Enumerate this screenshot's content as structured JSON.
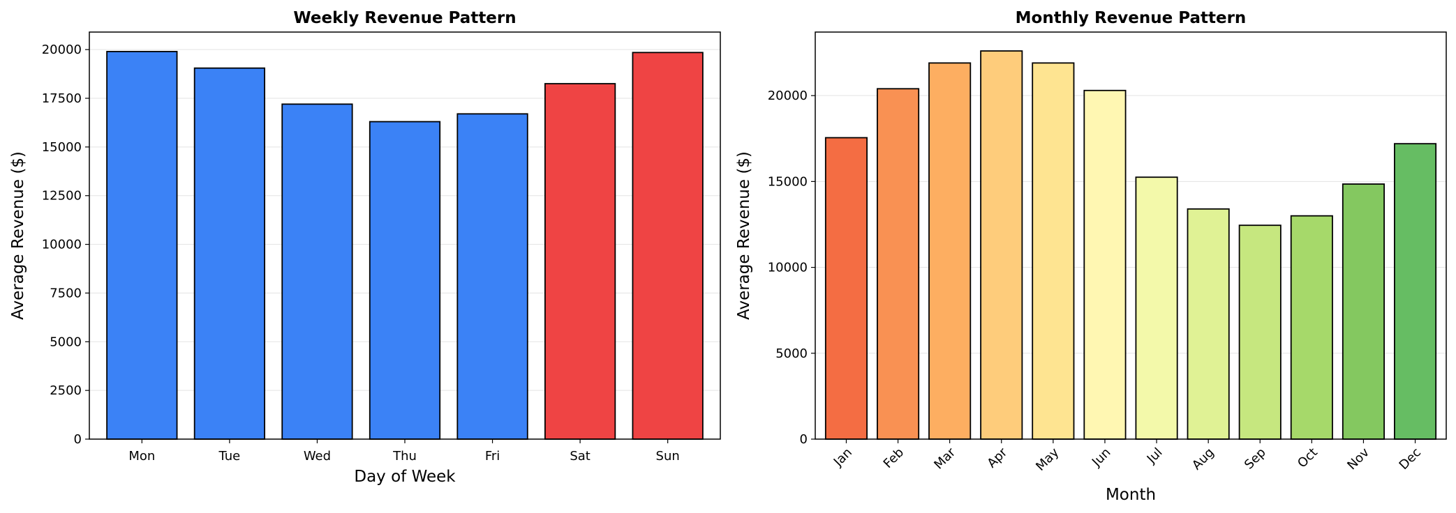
{
  "chart_data": [
    {
      "type": "bar",
      "title": "Weekly Revenue Pattern",
      "xlabel": "Day of Week",
      "ylabel": "Average Revenue ($)",
      "categories": [
        "Mon",
        "Tue",
        "Wed",
        "Thu",
        "Fri",
        "Sat",
        "Sun"
      ],
      "values": [
        19900,
        19050,
        17200,
        16300,
        16700,
        18250,
        19850
      ],
      "colors": [
        "#3b82f6",
        "#3b82f6",
        "#3b82f6",
        "#3b82f6",
        "#3b82f6",
        "#ef4444",
        "#ef4444"
      ],
      "ylim": [
        0,
        20900
      ],
      "yticks": [
        0,
        2500,
        5000,
        7500,
        10000,
        12500,
        15000,
        17500,
        20000
      ],
      "grid": "horizontal",
      "xtick_rotation": 0
    },
    {
      "type": "bar",
      "title": "Monthly Revenue Pattern",
      "xlabel": "Month",
      "ylabel": "Average Revenue ($)",
      "categories": [
        "Jan",
        "Feb",
        "Mar",
        "Apr",
        "May",
        "Jun",
        "Jul",
        "Aug",
        "Sep",
        "Oct",
        "Nov",
        "Dec"
      ],
      "values": [
        17550,
        20400,
        21900,
        22600,
        21900,
        20300,
        15250,
        13400,
        12450,
        13000,
        14850,
        17200
      ],
      "colors": [
        "#f46d43",
        "#f99153",
        "#fdae61",
        "#fecc7b",
        "#fee491",
        "#fff7b2",
        "#f3f9aa",
        "#e0f295",
        "#c6e77f",
        "#a6d96a",
        "#84c860",
        "#66bd63"
      ],
      "ylim": [
        0,
        23700
      ],
      "yticks": [
        0,
        5000,
        10000,
        15000,
        20000
      ],
      "grid": "horizontal",
      "xtick_rotation": -45
    }
  ]
}
